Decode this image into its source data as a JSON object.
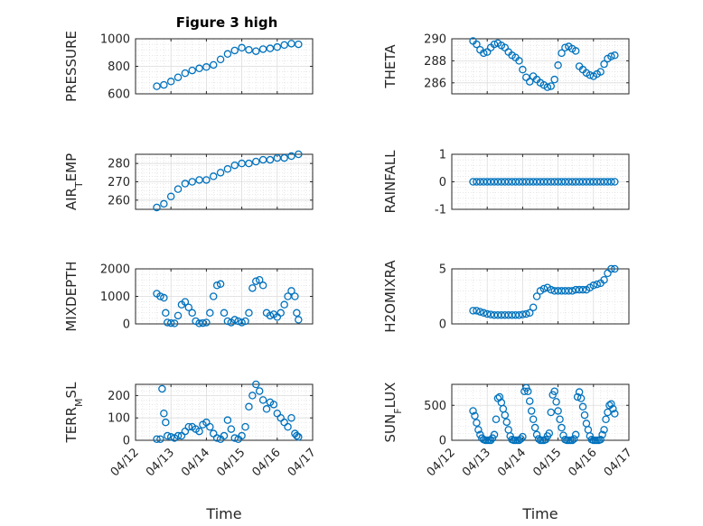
{
  "figure_title": "Figure 3 high",
  "marker_color": "#0072BD",
  "chart_data": [
    {
      "type": "scatter",
      "ylabel": "PRESSURE",
      "ylim": [
        600,
        1000
      ],
      "yticks": [
        600,
        800,
        1000
      ],
      "xlim": [
        0,
        5
      ],
      "x_tick_labels": [
        "04/12",
        "04/13",
        "04/14",
        "04/15",
        "04/16",
        "04/17"
      ],
      "show_x_tick_labels": false,
      "grid": true,
      "x": [
        0.6,
        0.8,
        1.0,
        1.2,
        1.4,
        1.6,
        1.8,
        2.0,
        2.2,
        2.4,
        2.6,
        2.8,
        3.0,
        3.2,
        3.4,
        3.6,
        3.8,
        4.0,
        4.2,
        4.4,
        4.6
      ],
      "y": [
        655,
        665,
        690,
        720,
        750,
        770,
        785,
        795,
        810,
        850,
        890,
        915,
        935,
        920,
        910,
        925,
        930,
        940,
        955,
        965,
        960
      ]
    },
    {
      "type": "scatter",
      "ylabel": "THETA",
      "ylim": [
        285,
        290
      ],
      "yticks": [
        286,
        288,
        290
      ],
      "xlim": [
        0,
        5
      ],
      "x_tick_labels": [
        "04/12",
        "04/13",
        "04/14",
        "04/15",
        "04/16",
        "04/17"
      ],
      "show_x_tick_labels": false,
      "grid": true,
      "x": [
        0.6,
        0.7,
        0.8,
        0.9,
        1.0,
        1.1,
        1.2,
        1.3,
        1.4,
        1.5,
        1.6,
        1.7,
        1.8,
        1.9,
        2.0,
        2.1,
        2.2,
        2.3,
        2.4,
        2.5,
        2.6,
        2.7,
        2.8,
        2.9,
        3.0,
        3.1,
        3.2,
        3.3,
        3.4,
        3.5,
        3.6,
        3.7,
        3.8,
        3.9,
        4.0,
        4.1,
        4.2,
        4.3,
        4.4,
        4.5,
        4.6
      ],
      "y": [
        289.8,
        289.5,
        289.0,
        288.7,
        288.8,
        289.2,
        289.5,
        289.6,
        289.4,
        289.2,
        288.8,
        288.5,
        288.3,
        288.0,
        287.2,
        286.5,
        286.1,
        286.6,
        286.3,
        286.0,
        285.8,
        285.6,
        285.7,
        286.3,
        287.6,
        288.7,
        289.2,
        289.3,
        289.1,
        288.9,
        287.5,
        287.2,
        286.9,
        286.7,
        286.6,
        286.8,
        287.0,
        287.7,
        288.2,
        288.4,
        288.5
      ]
    },
    {
      "type": "scatter",
      "ylabel": "AIR_TEMP",
      "ylim": [
        255,
        285
      ],
      "yticks": [
        260,
        270,
        280
      ],
      "xlim": [
        0,
        5
      ],
      "x_tick_labels": [
        "04/12",
        "04/13",
        "04/14",
        "04/15",
        "04/16",
        "04/17"
      ],
      "show_x_tick_labels": false,
      "grid": true,
      "x": [
        0.6,
        0.8,
        1.0,
        1.2,
        1.4,
        1.6,
        1.8,
        2.0,
        2.2,
        2.4,
        2.6,
        2.8,
        3.0,
        3.2,
        3.4,
        3.6,
        3.8,
        4.0,
        4.2,
        4.4,
        4.6
      ],
      "y": [
        256,
        258,
        262,
        266,
        269,
        270,
        271,
        271,
        273,
        275,
        277,
        279,
        280,
        280,
        281,
        282,
        282,
        283,
        283,
        284,
        285
      ]
    },
    {
      "type": "scatter",
      "ylabel": "RAINFALL",
      "ylim": [
        -1,
        1
      ],
      "yticks": [
        -1,
        0,
        1
      ],
      "xlim": [
        0,
        5
      ],
      "x_tick_labels": [
        "04/12",
        "04/13",
        "04/14",
        "04/15",
        "04/16",
        "04/17"
      ],
      "show_x_tick_labels": false,
      "grid": true,
      "x": [
        0.6,
        0.7,
        0.8,
        0.9,
        1.0,
        1.1,
        1.2,
        1.3,
        1.4,
        1.5,
        1.6,
        1.7,
        1.8,
        1.9,
        2.0,
        2.1,
        2.2,
        2.3,
        2.4,
        2.5,
        2.6,
        2.7,
        2.8,
        2.9,
        3.0,
        3.1,
        3.2,
        3.3,
        3.4,
        3.5,
        3.6,
        3.7,
        3.8,
        3.9,
        4.0,
        4.1,
        4.2,
        4.3,
        4.4,
        4.5,
        4.6
      ],
      "y": [
        0,
        0,
        0,
        0,
        0,
        0,
        0,
        0,
        0,
        0,
        0,
        0,
        0,
        0,
        0,
        0,
        0,
        0,
        0,
        0,
        0,
        0,
        0,
        0,
        0,
        0,
        0,
        0,
        0,
        0,
        0,
        0,
        0,
        0,
        0,
        0,
        0,
        0,
        0,
        0,
        0
      ]
    },
    {
      "type": "scatter",
      "ylabel": "MIXDEPTH",
      "ylim": [
        0,
        2000
      ],
      "yticks": [
        0,
        1000,
        2000
      ],
      "xlim": [
        0,
        5
      ],
      "x_tick_labels": [
        "04/12",
        "04/13",
        "04/14",
        "04/15",
        "04/16",
        "04/17"
      ],
      "show_x_tick_labels": false,
      "grid": true,
      "x": [
        0.6,
        0.7,
        0.8,
        0.85,
        0.9,
        1.0,
        1.1,
        1.2,
        1.3,
        1.4,
        1.5,
        1.6,
        1.7,
        1.8,
        1.9,
        2.0,
        2.1,
        2.2,
        2.3,
        2.4,
        2.5,
        2.6,
        2.7,
        2.8,
        2.9,
        3.0,
        3.1,
        3.2,
        3.3,
        3.4,
        3.5,
        3.6,
        3.7,
        3.8,
        3.9,
        4.0,
        4.1,
        4.2,
        4.3,
        4.4,
        4.5,
        4.55,
        4.6
      ],
      "y": [
        1100,
        1000,
        950,
        400,
        50,
        30,
        20,
        300,
        700,
        800,
        600,
        400,
        100,
        20,
        30,
        50,
        400,
        1000,
        1400,
        1450,
        400,
        100,
        50,
        150,
        100,
        50,
        100,
        400,
        1300,
        1550,
        1600,
        1400,
        400,
        300,
        350,
        250,
        400,
        700,
        1000,
        1200,
        1000,
        400,
        150
      ]
    },
    {
      "type": "scatter",
      "ylabel": "H2OMIXRA",
      "ylim": [
        0,
        5
      ],
      "yticks": [
        0,
        5
      ],
      "xlim": [
        0,
        5
      ],
      "x_tick_labels": [
        "04/12",
        "04/13",
        "04/14",
        "04/15",
        "04/16",
        "04/17"
      ],
      "show_x_tick_labels": false,
      "grid": true,
      "x": [
        0.6,
        0.7,
        0.8,
        0.9,
        1.0,
        1.1,
        1.2,
        1.3,
        1.4,
        1.5,
        1.6,
        1.7,
        1.8,
        1.9,
        2.0,
        2.1,
        2.2,
        2.3,
        2.4,
        2.5,
        2.6,
        2.7,
        2.8,
        2.9,
        3.0,
        3.1,
        3.2,
        3.3,
        3.4,
        3.5,
        3.6,
        3.7,
        3.8,
        3.9,
        4.0,
        4.1,
        4.2,
        4.3,
        4.4,
        4.5,
        4.6
      ],
      "y": [
        1.2,
        1.2,
        1.1,
        1.0,
        0.9,
        0.85,
        0.8,
        0.8,
        0.8,
        0.8,
        0.8,
        0.8,
        0.8,
        0.8,
        0.85,
        0.9,
        1.0,
        1.5,
        2.5,
        3.0,
        3.2,
        3.3,
        3.1,
        3.0,
        3.0,
        3.0,
        3.0,
        3.0,
        3.0,
        3.1,
        3.1,
        3.1,
        3.1,
        3.3,
        3.5,
        3.6,
        3.7,
        4.0,
        4.6,
        5.0,
        5.0
      ]
    },
    {
      "type": "scatter",
      "ylabel": "TERR_MSL",
      "ylim": [
        0,
        250
      ],
      "yticks": [
        0,
        100,
        200
      ],
      "xlim": [
        0,
        5
      ],
      "x_tick_labels": [
        "04/12",
        "04/13",
        "04/14",
        "04/15",
        "04/16",
        "04/17"
      ],
      "show_x_tick_labels": true,
      "grid": true,
      "xlabel": "Time",
      "x": [
        0.6,
        0.7,
        0.75,
        0.8,
        0.85,
        0.9,
        1.0,
        1.1,
        1.2,
        1.3,
        1.4,
        1.5,
        1.6,
        1.7,
        1.8,
        1.9,
        2.0,
        2.1,
        2.2,
        2.3,
        2.4,
        2.5,
        2.6,
        2.7,
        2.8,
        2.9,
        3.0,
        3.1,
        3.2,
        3.3,
        3.4,
        3.5,
        3.6,
        3.7,
        3.8,
        3.9,
        4.0,
        4.1,
        4.2,
        4.3,
        4.4,
        4.5,
        4.55,
        4.6
      ],
      "y": [
        5,
        5,
        230,
        120,
        80,
        20,
        15,
        10,
        20,
        20,
        40,
        60,
        60,
        50,
        40,
        70,
        80,
        60,
        30,
        10,
        5,
        20,
        90,
        50,
        10,
        5,
        20,
        60,
        150,
        200,
        250,
        220,
        180,
        140,
        170,
        160,
        120,
        100,
        80,
        60,
        100,
        30,
        20,
        15
      ]
    },
    {
      "type": "scatter",
      "ylabel": "SUN_FLUX",
      "ylim": [
        0,
        800
      ],
      "yticks": [
        0,
        500
      ],
      "xlim": [
        0,
        5
      ],
      "x_tick_labels": [
        "04/12",
        "04/13",
        "04/14",
        "04/15",
        "04/16",
        "04/17"
      ],
      "show_x_tick_labels": true,
      "grid": true,
      "xlabel": "Time",
      "x": [
        0.6,
        0.65,
        0.7,
        0.75,
        0.8,
        0.85,
        0.9,
        0.95,
        1.0,
        1.05,
        1.1,
        1.15,
        1.2,
        1.25,
        1.3,
        1.35,
        1.4,
        1.45,
        1.5,
        1.55,
        1.6,
        1.65,
        1.7,
        1.75,
        1.8,
        1.85,
        1.9,
        1.95,
        2.0,
        2.05,
        2.1,
        2.15,
        2.2,
        2.25,
        2.3,
        2.35,
        2.4,
        2.45,
        2.5,
        2.55,
        2.6,
        2.65,
        2.7,
        2.75,
        2.8,
        2.85,
        2.9,
        2.95,
        3.0,
        3.05,
        3.1,
        3.15,
        3.2,
        3.25,
        3.3,
        3.35,
        3.4,
        3.45,
        3.5,
        3.55,
        3.6,
        3.65,
        3.7,
        3.75,
        3.8,
        3.85,
        3.9,
        3.95,
        4.0,
        4.05,
        4.1,
        4.15,
        4.2,
        4.25,
        4.3,
        4.35,
        4.4,
        4.45,
        4.5,
        4.55,
        4.6
      ],
      "y": [
        420,
        350,
        250,
        150,
        80,
        30,
        10,
        0,
        0,
        0,
        0,
        30,
        80,
        300,
        600,
        620,
        540,
        450,
        360,
        260,
        150,
        60,
        10,
        0,
        0,
        0,
        0,
        20,
        50,
        700,
        750,
        700,
        560,
        420,
        300,
        180,
        80,
        20,
        0,
        0,
        0,
        10,
        60,
        100,
        400,
        650,
        700,
        550,
        420,
        300,
        180,
        70,
        10,
        0,
        0,
        0,
        0,
        20,
        80,
        620,
        690,
        600,
        480,
        360,
        240,
        150,
        60,
        10,
        0,
        0,
        0,
        0,
        10,
        80,
        150,
        300,
        400,
        500,
        520,
        450,
        380
      ]
    }
  ]
}
